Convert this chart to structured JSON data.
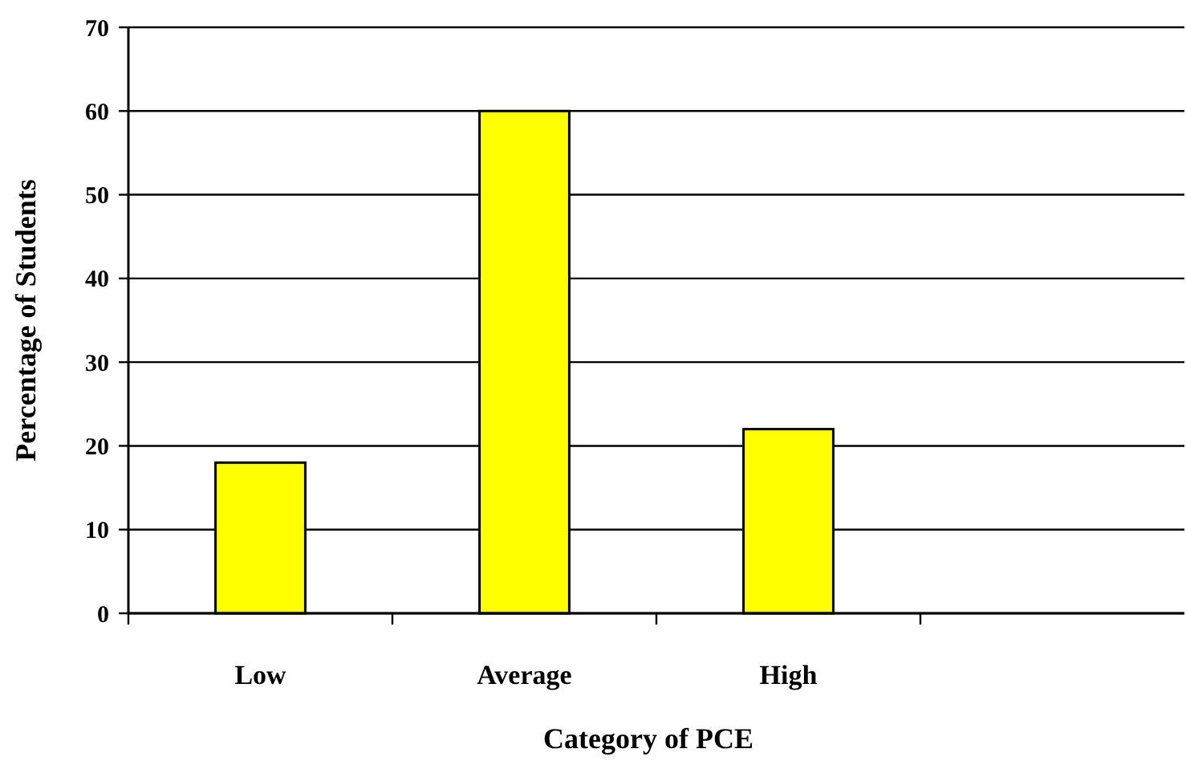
{
  "chart_data": {
    "type": "bar",
    "xlabel": "Category of PCE",
    "ylabel": "Percentage of Students",
    "categories": [
      "Low",
      "Average",
      "High",
      null
    ],
    "values": [
      18,
      60,
      22,
      null
    ],
    "color": "#ffff00",
    "ylim": [
      0,
      70
    ],
    "yticks": [
      0,
      10,
      20,
      30,
      40,
      50,
      60,
      70
    ],
    "grid": "y"
  }
}
